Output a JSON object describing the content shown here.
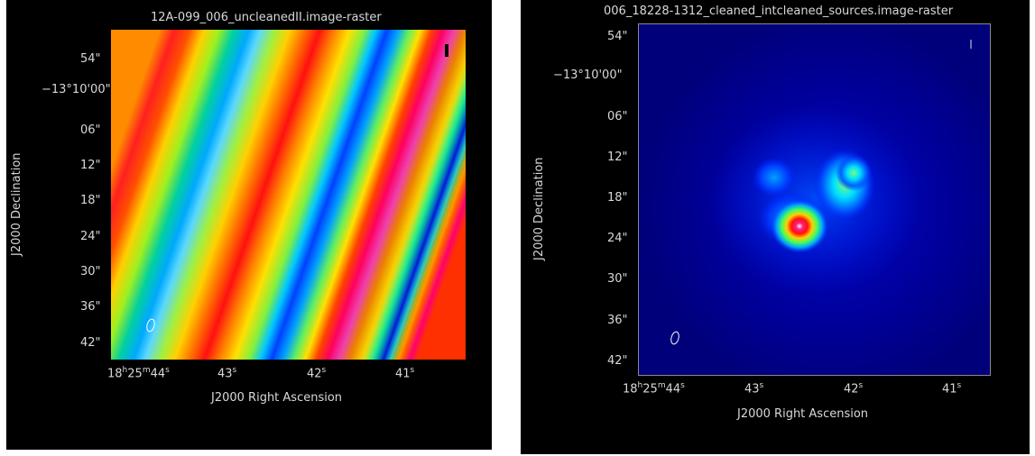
{
  "left": {
    "title": "12A-099_006_uncleanedII.image-raster",
    "xlabel": "J2000 Right Ascension",
    "ylabel": "J2000 Declination",
    "yticks": [
      "54\"",
      "−13°10'00\"",
      "06\"",
      "12\"",
      "18\"",
      "24\"",
      "30\"",
      "36\"",
      "42\""
    ],
    "xticks": [
      {
        "main": "18",
        "h": "h",
        "m1": "25",
        "m": "m",
        "s1": "44",
        "s": "s"
      },
      {
        "main": "43",
        "s": "s"
      },
      {
        "main": "42",
        "s": "s"
      },
      {
        "main": "41",
        "s": "s"
      }
    ],
    "colormap": "rainbow",
    "beam_marker": "ellipse"
  },
  "right": {
    "title": "006_18228-1312_cleaned_intcleaned_sources.image-raster",
    "xlabel": "J2000 Right Ascension",
    "ylabel": "J2000 Declination",
    "yticks": [
      "54\"",
      "−13°10'00\"",
      "06\"",
      "12\"",
      "18\"",
      "24\"",
      "30\"",
      "36\"",
      "42\""
    ],
    "xticks": [
      {
        "main": "18",
        "h": "h",
        "m1": "25",
        "m": "m",
        "s1": "44",
        "s": "s"
      },
      {
        "main": "43",
        "s": "s"
      },
      {
        "main": "42",
        "s": "s"
      },
      {
        "main": "41",
        "s": "s"
      }
    ],
    "colormap": "rainbow",
    "beam_marker": "ellipse"
  },
  "colors": {
    "background": "#000000",
    "text": "#d8d8d8"
  }
}
